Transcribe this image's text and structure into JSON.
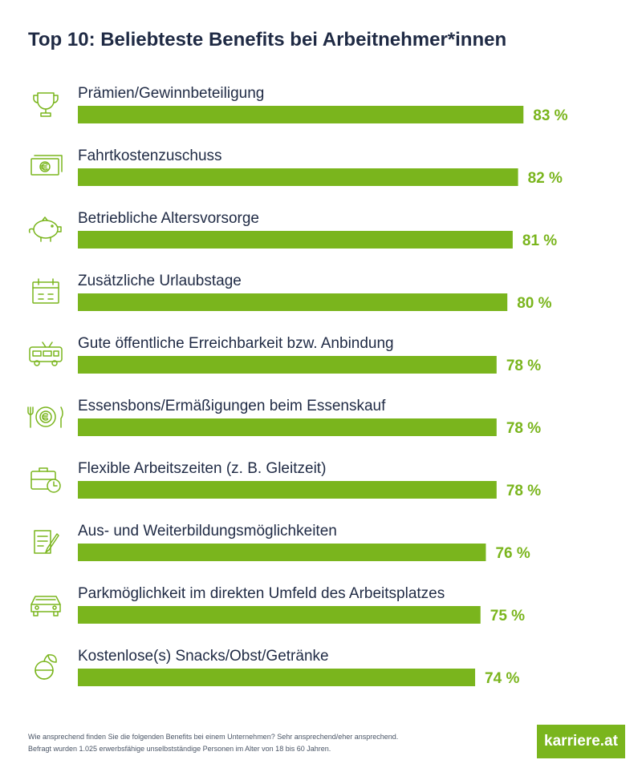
{
  "chart_data": {
    "type": "bar",
    "title": "Top 10: Beliebteste Benefits bei Arbeitnehmer*innen",
    "categories": [
      "Prämien/Gewinnbeteiligung",
      "Fahrtkostenzuschuss",
      "Betriebliche Altersvorsorge",
      "Zusätzliche Urlaubstage",
      "Gute öffentliche Erreichbarkeit bzw. Anbindung",
      "Essensbons/Ermäßigungen beim Essenskauf",
      "Flexible Arbeitszeiten (z. B. Gleitzeit)",
      "Aus- und Weiterbildungsmöglichkeiten",
      "Parkmöglichkeit im direkten Umfeld des Arbeitsplatzes",
      "Kostenlose(s) Snacks/Obst/Getränke"
    ],
    "values": [
      83,
      82,
      81,
      80,
      78,
      78,
      78,
      76,
      75,
      74
    ],
    "value_labels": [
      "83 %",
      "82 %",
      "81 %",
      "80 %",
      "78 %",
      "78 %",
      "78 %",
      "76 %",
      "75 %",
      "74 %"
    ],
    "icons": [
      "trophy-icon",
      "banknote-euro-icon",
      "piggy-bank-icon",
      "calendar-icon",
      "bus-icon",
      "plate-euro-icon",
      "briefcase-clock-icon",
      "document-pen-icon",
      "car-icon",
      "fruit-icon"
    ],
    "orientation": "horizontal",
    "bar_color": "#7ab51d",
    "label_color": "#7ab51d",
    "xlim": [
      0,
      100
    ],
    "grid": false,
    "legend": "none"
  },
  "colors": {
    "title": "#1f2a44",
    "text": "#1f2a44",
    "accent": "#7ab51d",
    "icon": "#7ab51d"
  },
  "footer": {
    "note_line1": "Wie ansprechend finden Sie die folgenden Benefits bei einem Unternehmen? Sehr ansprechend/eher ansprechend.",
    "note_line2": "Befragt wurden 1.025 erwerbsfähige unselbstständige Personen im Alter von 18 bis 60 Jahren.",
    "brand": "karriere.at"
  }
}
